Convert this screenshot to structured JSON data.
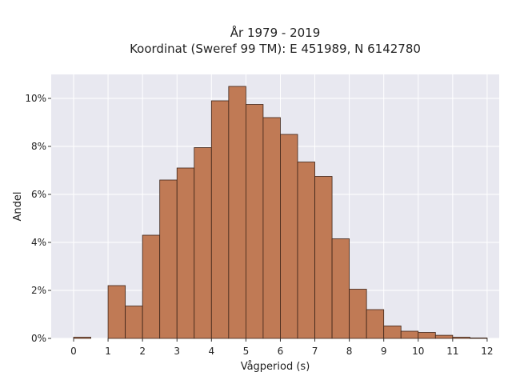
{
  "chart_data": {
    "type": "bar",
    "title": "År 1979 - 2019",
    "subtitle": "Koordinat (Sweref 99 TM): E 451989, N 6142780",
    "xlabel": "Vågperiod (s)",
    "ylabel": "Andel",
    "x_ticks": [
      "0",
      "1",
      "2",
      "3",
      "4",
      "5",
      "6",
      "7",
      "8",
      "9",
      "10",
      "11",
      "12"
    ],
    "y_ticks": [
      "0%",
      "2%",
      "4%",
      "6%",
      "8%",
      "10%"
    ],
    "xlim": [
      -0.65,
      12.35
    ],
    "ylim": [
      0,
      11
    ],
    "bin_width": 0.5,
    "bins": [
      {
        "x0": 0.0,
        "value": 0.05
      },
      {
        "x0": 0.5,
        "value": 0.0
      },
      {
        "x0": 1.0,
        "value": 2.2
      },
      {
        "x0": 1.5,
        "value": 1.35
      },
      {
        "x0": 2.0,
        "value": 4.3
      },
      {
        "x0": 2.5,
        "value": 6.6
      },
      {
        "x0": 3.0,
        "value": 7.1
      },
      {
        "x0": 3.5,
        "value": 7.95
      },
      {
        "x0": 4.0,
        "value": 9.9
      },
      {
        "x0": 4.5,
        "value": 10.5
      },
      {
        "x0": 5.0,
        "value": 9.75
      },
      {
        "x0": 5.5,
        "value": 9.2
      },
      {
        "x0": 6.0,
        "value": 8.5
      },
      {
        "x0": 6.5,
        "value": 7.35
      },
      {
        "x0": 7.0,
        "value": 6.75
      },
      {
        "x0": 7.5,
        "value": 4.15
      },
      {
        "x0": 8.0,
        "value": 2.05
      },
      {
        "x0": 8.5,
        "value": 1.2
      },
      {
        "x0": 9.0,
        "value": 0.52
      },
      {
        "x0": 9.5,
        "value": 0.3
      },
      {
        "x0": 10.0,
        "value": 0.25
      },
      {
        "x0": 10.5,
        "value": 0.13
      },
      {
        "x0": 11.0,
        "value": 0.05
      },
      {
        "x0": 11.5,
        "value": 0.02
      }
    ],
    "grid": true,
    "bar_color": "#c07a55",
    "bar_edge_color": "#3d2418",
    "plot_background": "#e8e8f0"
  }
}
